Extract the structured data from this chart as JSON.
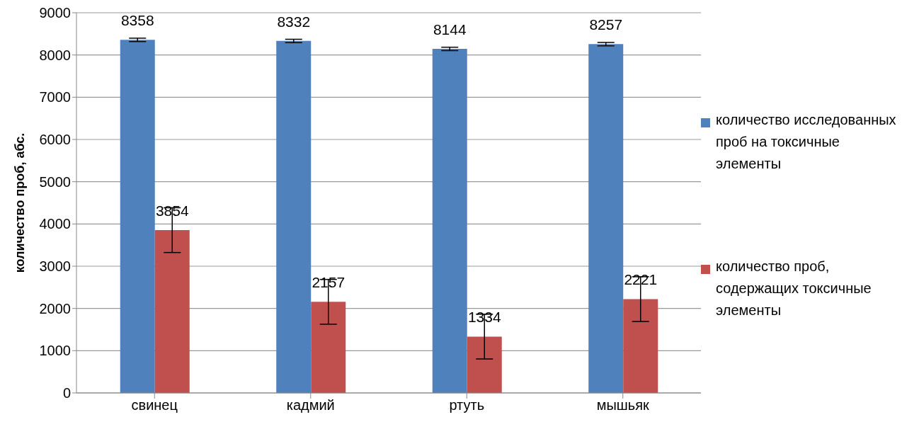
{
  "chart_data": {
    "type": "bar",
    "ylabel": "количество проб, абс.",
    "categories": [
      "свинец",
      "кадмий",
      "ртуть",
      "мышьяк"
    ],
    "series": [
      {
        "name": "количество исследованных проб на токсичные элементы",
        "color": "#4f81bd",
        "values": [
          8358,
          8332,
          8144,
          8257
        ],
        "errors": [
          40,
          40,
          40,
          40
        ]
      },
      {
        "name": "количество проб, содержащих токсичные элементы",
        "color": "#c0504d",
        "values": [
          3854,
          2157,
          1334,
          2221
        ],
        "errors": [
          530,
          530,
          530,
          530
        ]
      }
    ],
    "ylim": [
      0,
      9000
    ],
    "yticks": [
      0,
      1000,
      2000,
      3000,
      4000,
      5000,
      6000,
      7000,
      8000,
      9000
    ],
    "grid": "y",
    "legend": "right",
    "data_labels": true
  }
}
